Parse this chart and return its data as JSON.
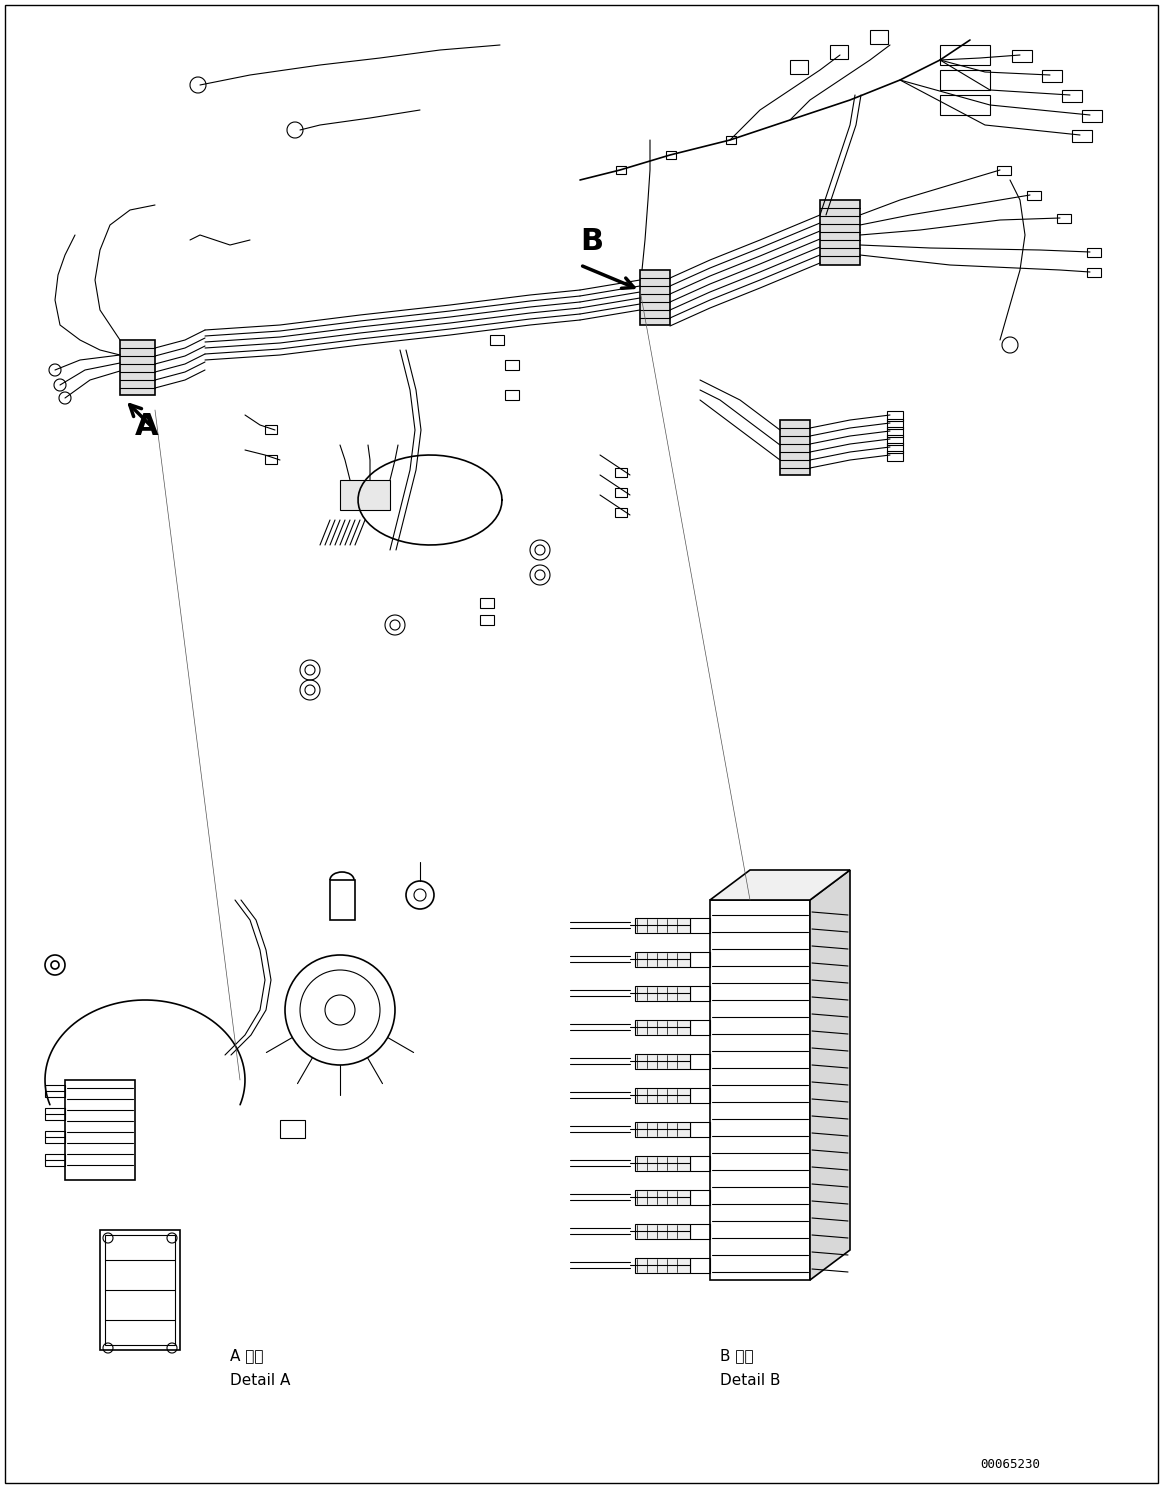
{
  "background_color": "#ffffff",
  "part_number": "00065230",
  "label_A": "A",
  "label_B": "B",
  "detail_A_japanese": "A 詳細",
  "detail_A_english": "Detail A",
  "detail_B_japanese": "B 詳細",
  "detail_B_english": "Detail B",
  "line_color": "#000000",
  "arrow_color": "#000000",
  "fig_width": 11.63,
  "fig_height": 14.88,
  "dpi": 100
}
